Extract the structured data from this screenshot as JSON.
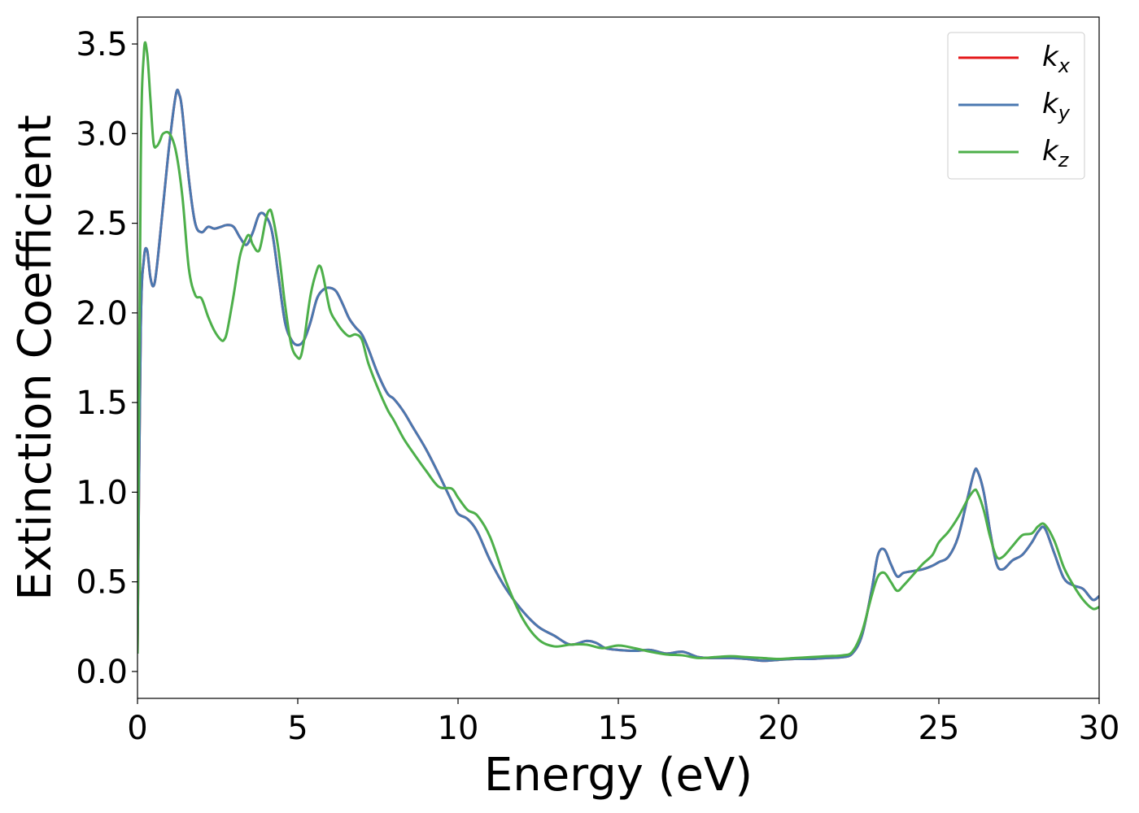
{
  "chart_data": {
    "type": "line",
    "xlabel": "Energy (eV)",
    "ylabel": "Extinction Coefficient",
    "xlim": [
      0,
      30
    ],
    "ylim": [
      -0.15,
      3.65
    ],
    "xticks": [
      0,
      5,
      10,
      15,
      20,
      25,
      30
    ],
    "xtick_labels": [
      "0",
      "5",
      "10",
      "15",
      "20",
      "25",
      "30"
    ],
    "yticks": [
      0.0,
      0.5,
      1.0,
      1.5,
      2.0,
      2.5,
      3.0,
      3.5
    ],
    "ytick_labels": [
      "0.0",
      "0.5",
      "1.0",
      "1.5",
      "2.0",
      "2.5",
      "3.0",
      "3.5"
    ],
    "grid": false,
    "legend_position": "top-right",
    "series": [
      {
        "name": "k",
        "subscript": "x",
        "color": "#e41a1c",
        "x": [
          0,
          0.1,
          0.2,
          0.3,
          0.4,
          0.5,
          0.6,
          0.8,
          1.0,
          1.2,
          1.3,
          1.4,
          1.6,
          1.8,
          2.0,
          2.2,
          2.4,
          2.6,
          2.8,
          3.0,
          3.2,
          3.4,
          3.6,
          3.8,
          4.0,
          4.2,
          4.4,
          4.6,
          4.8,
          5.0,
          5.2,
          5.4,
          5.6,
          5.8,
          6.0,
          6.2,
          6.4,
          6.6,
          6.8,
          7.0,
          7.2,
          7.5,
          7.8,
          8.0,
          8.3,
          8.6,
          9.0,
          9.4,
          9.8,
          10.0,
          10.3,
          10.6,
          11.0,
          11.5,
          12.0,
          12.5,
          13.0,
          13.5,
          14.0,
          14.3,
          14.6,
          15.0,
          15.5,
          16.0,
          16.5,
          17.0,
          17.5,
          18.0,
          18.5,
          19.0,
          19.5,
          20.0,
          20.5,
          21.0,
          21.5,
          22.0,
          22.3,
          22.6,
          22.9,
          23.1,
          23.3,
          23.5,
          23.7,
          23.9,
          24.2,
          24.5,
          24.8,
          25.0,
          25.3,
          25.6,
          25.9,
          26.1,
          26.2,
          26.4,
          26.6,
          26.8,
          27.0,
          27.3,
          27.6,
          27.9,
          28.1,
          28.3,
          28.6,
          28.9,
          29.2,
          29.5,
          29.8,
          30.0
        ],
        "values": [
          0.1,
          1.9,
          2.3,
          2.35,
          2.2,
          2.15,
          2.25,
          2.6,
          2.95,
          3.22,
          3.22,
          3.12,
          2.75,
          2.5,
          2.45,
          2.48,
          2.47,
          2.48,
          2.49,
          2.48,
          2.42,
          2.38,
          2.45,
          2.55,
          2.54,
          2.45,
          2.2,
          1.95,
          1.85,
          1.82,
          1.85,
          1.95,
          2.08,
          2.13,
          2.14,
          2.12,
          2.05,
          1.97,
          1.92,
          1.88,
          1.8,
          1.66,
          1.55,
          1.52,
          1.45,
          1.36,
          1.24,
          1.1,
          0.95,
          0.88,
          0.85,
          0.78,
          0.62,
          0.46,
          0.34,
          0.25,
          0.2,
          0.15,
          0.17,
          0.16,
          0.13,
          0.12,
          0.115,
          0.12,
          0.1,
          0.11,
          0.08,
          0.075,
          0.075,
          0.07,
          0.06,
          0.065,
          0.07,
          0.07,
          0.075,
          0.08,
          0.1,
          0.2,
          0.45,
          0.65,
          0.68,
          0.6,
          0.53,
          0.55,
          0.56,
          0.57,
          0.59,
          0.61,
          0.64,
          0.75,
          0.97,
          1.11,
          1.12,
          1.0,
          0.78,
          0.6,
          0.57,
          0.62,
          0.65,
          0.72,
          0.78,
          0.8,
          0.66,
          0.52,
          0.48,
          0.46,
          0.4,
          0.42
        ]
      },
      {
        "name": "k",
        "subscript": "y",
        "color": "#4a78b0",
        "x": [
          0,
          0.1,
          0.2,
          0.3,
          0.4,
          0.5,
          0.6,
          0.8,
          1.0,
          1.2,
          1.3,
          1.4,
          1.6,
          1.8,
          2.0,
          2.2,
          2.4,
          2.6,
          2.8,
          3.0,
          3.2,
          3.4,
          3.6,
          3.8,
          4.0,
          4.2,
          4.4,
          4.6,
          4.8,
          5.0,
          5.2,
          5.4,
          5.6,
          5.8,
          6.0,
          6.2,
          6.4,
          6.6,
          6.8,
          7.0,
          7.2,
          7.5,
          7.8,
          8.0,
          8.3,
          8.6,
          9.0,
          9.4,
          9.8,
          10.0,
          10.3,
          10.6,
          11.0,
          11.5,
          12.0,
          12.5,
          13.0,
          13.5,
          14.0,
          14.3,
          14.6,
          15.0,
          15.5,
          16.0,
          16.5,
          17.0,
          17.5,
          18.0,
          18.5,
          19.0,
          19.5,
          20.0,
          20.5,
          21.0,
          21.5,
          22.0,
          22.3,
          22.6,
          22.9,
          23.1,
          23.3,
          23.5,
          23.7,
          23.9,
          24.2,
          24.5,
          24.8,
          25.0,
          25.3,
          25.6,
          25.9,
          26.1,
          26.2,
          26.4,
          26.6,
          26.8,
          27.0,
          27.3,
          27.6,
          27.9,
          28.1,
          28.3,
          28.6,
          28.9,
          29.2,
          29.5,
          29.8,
          30.0
        ],
        "values": [
          0.1,
          1.9,
          2.3,
          2.35,
          2.2,
          2.15,
          2.25,
          2.6,
          2.95,
          3.22,
          3.22,
          3.12,
          2.75,
          2.5,
          2.45,
          2.48,
          2.47,
          2.48,
          2.49,
          2.48,
          2.42,
          2.38,
          2.45,
          2.55,
          2.54,
          2.45,
          2.2,
          1.95,
          1.85,
          1.82,
          1.85,
          1.95,
          2.08,
          2.13,
          2.14,
          2.12,
          2.05,
          1.97,
          1.92,
          1.88,
          1.8,
          1.66,
          1.55,
          1.52,
          1.45,
          1.36,
          1.24,
          1.1,
          0.95,
          0.88,
          0.85,
          0.78,
          0.62,
          0.46,
          0.34,
          0.25,
          0.2,
          0.15,
          0.17,
          0.16,
          0.13,
          0.12,
          0.115,
          0.12,
          0.1,
          0.11,
          0.08,
          0.075,
          0.075,
          0.07,
          0.06,
          0.065,
          0.07,
          0.07,
          0.075,
          0.08,
          0.1,
          0.2,
          0.45,
          0.65,
          0.68,
          0.6,
          0.53,
          0.55,
          0.56,
          0.57,
          0.59,
          0.61,
          0.64,
          0.75,
          0.97,
          1.11,
          1.12,
          1.0,
          0.78,
          0.6,
          0.57,
          0.62,
          0.65,
          0.72,
          0.78,
          0.8,
          0.66,
          0.52,
          0.48,
          0.46,
          0.4,
          0.42
        ]
      },
      {
        "name": "k",
        "subscript": "z",
        "color": "#4daf4a",
        "x": [
          0,
          0.1,
          0.2,
          0.3,
          0.4,
          0.5,
          0.6,
          0.7,
          0.8,
          1.0,
          1.2,
          1.4,
          1.6,
          1.8,
          2.0,
          2.2,
          2.4,
          2.6,
          2.7,
          2.8,
          3.0,
          3.2,
          3.4,
          3.5,
          3.6,
          3.8,
          4.0,
          4.1,
          4.2,
          4.4,
          4.6,
          4.8,
          5.0,
          5.1,
          5.2,
          5.4,
          5.6,
          5.7,
          5.8,
          6.0,
          6.2,
          6.4,
          6.6,
          6.8,
          7.0,
          7.2,
          7.5,
          7.8,
          8.0,
          8.3,
          8.6,
          9.0,
          9.4,
          9.8,
          10.0,
          10.3,
          10.6,
          11.0,
          11.5,
          12.0,
          12.5,
          13.0,
          13.5,
          14.0,
          14.5,
          15.0,
          15.5,
          16.0,
          16.5,
          17.0,
          17.5,
          18.0,
          18.5,
          19.0,
          19.5,
          20.0,
          20.5,
          21.0,
          21.5,
          22.0,
          22.3,
          22.6,
          22.9,
          23.1,
          23.3,
          23.5,
          23.7,
          23.9,
          24.2,
          24.5,
          24.8,
          25.0,
          25.3,
          25.6,
          25.9,
          26.1,
          26.2,
          26.4,
          26.6,
          26.8,
          27.0,
          27.3,
          27.6,
          27.9,
          28.1,
          28.3,
          28.6,
          28.9,
          29.2,
          29.5,
          29.8,
          30.0
        ],
        "values": [
          0.1,
          2.8,
          3.45,
          3.45,
          3.2,
          2.95,
          2.93,
          2.96,
          3.0,
          3.0,
          2.9,
          2.65,
          2.25,
          2.1,
          2.08,
          1.98,
          1.9,
          1.85,
          1.85,
          1.9,
          2.1,
          2.32,
          2.42,
          2.43,
          2.38,
          2.35,
          2.52,
          2.57,
          2.55,
          2.35,
          2.05,
          1.82,
          1.75,
          1.76,
          1.85,
          2.1,
          2.24,
          2.26,
          2.2,
          2.02,
          1.95,
          1.9,
          1.87,
          1.88,
          1.85,
          1.72,
          1.58,
          1.46,
          1.4,
          1.3,
          1.22,
          1.12,
          1.03,
          1.02,
          0.97,
          0.9,
          0.87,
          0.75,
          0.5,
          0.3,
          0.18,
          0.14,
          0.15,
          0.15,
          0.13,
          0.145,
          0.13,
          0.11,
          0.095,
          0.09,
          0.075,
          0.08,
          0.085,
          0.08,
          0.075,
          0.07,
          0.075,
          0.08,
          0.085,
          0.09,
          0.11,
          0.22,
          0.42,
          0.53,
          0.55,
          0.5,
          0.45,
          0.48,
          0.54,
          0.6,
          0.65,
          0.72,
          0.78,
          0.86,
          0.96,
          1.01,
          1.0,
          0.9,
          0.75,
          0.64,
          0.64,
          0.7,
          0.76,
          0.77,
          0.81,
          0.82,
          0.73,
          0.58,
          0.48,
          0.4,
          0.35,
          0.36
        ]
      }
    ]
  }
}
